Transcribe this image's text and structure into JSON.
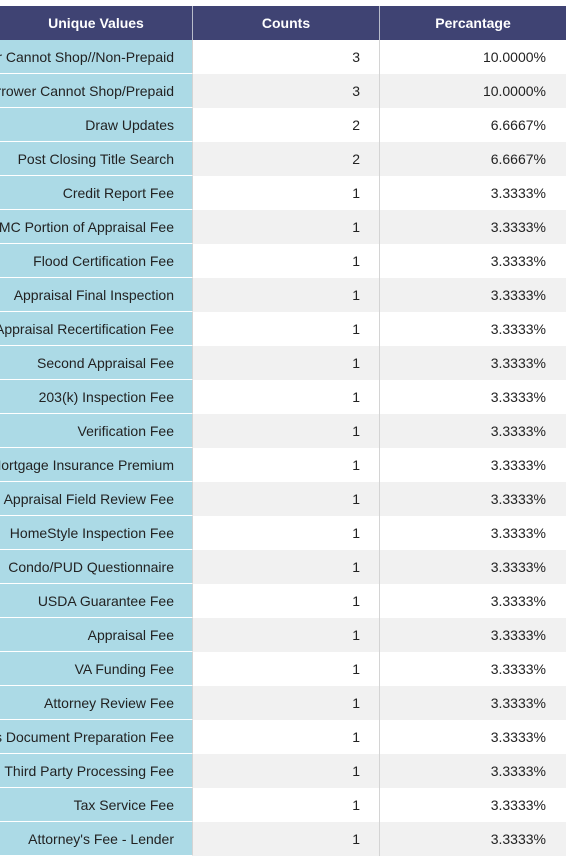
{
  "table": {
    "headers": [
      "Unique Values",
      "Counts",
      "Percantage"
    ],
    "rows": [
      {
        "value": "Borrower Cannot Shop//Non-Prepaid",
        "count": "3",
        "percent": "10.0000%"
      },
      {
        "value": "Borrower Cannot Shop/Prepaid",
        "count": "3",
        "percent": "10.0000%"
      },
      {
        "value": "Draw Updates",
        "count": "2",
        "percent": "6.6667%"
      },
      {
        "value": "Post Closing Title Search",
        "count": "2",
        "percent": "6.6667%"
      },
      {
        "value": "Credit Report Fee",
        "count": "1",
        "percent": "3.3333%"
      },
      {
        "value": "AMC Portion of Appraisal Fee",
        "count": "1",
        "percent": "3.3333%"
      },
      {
        "value": "Flood Certification Fee",
        "count": "1",
        "percent": "3.3333%"
      },
      {
        "value": "Appraisal Final Inspection",
        "count": "1",
        "percent": "3.3333%"
      },
      {
        "value": "Appraisal Recertification Fee",
        "count": "1",
        "percent": "3.3333%"
      },
      {
        "value": "Second Appraisal Fee",
        "count": "1",
        "percent": "3.3333%"
      },
      {
        "value": "203(k) Inspection Fee",
        "count": "1",
        "percent": "3.3333%"
      },
      {
        "value": "Verification Fee",
        "count": "1",
        "percent": "3.3333%"
      },
      {
        "value": "Mortgage Insurance Premium",
        "count": "1",
        "percent": "3.3333%"
      },
      {
        "value": "Appraisal Field Review Fee",
        "count": "1",
        "percent": "3.3333%"
      },
      {
        "value": "HomeStyle Inspection Fee",
        "count": "1",
        "percent": "3.3333%"
      },
      {
        "value": "Condo/PUD Questionnaire",
        "count": "1",
        "percent": "3.3333%"
      },
      {
        "value": "USDA Guarantee Fee",
        "count": "1",
        "percent": "3.3333%"
      },
      {
        "value": "Appraisal Fee",
        "count": "1",
        "percent": "3.3333%"
      },
      {
        "value": "VA Funding Fee",
        "count": "1",
        "percent": "3.3333%"
      },
      {
        "value": "Attorney Review Fee",
        "count": "1",
        "percent": "3.3333%"
      },
      {
        "value": "Lenders Document Preparation Fee",
        "count": "1",
        "percent": "3.3333%"
      },
      {
        "value": "Third Party Processing Fee",
        "count": "1",
        "percent": "3.3333%"
      },
      {
        "value": "Tax Service Fee",
        "count": "1",
        "percent": "3.3333%"
      },
      {
        "value": "Attorney's Fee - Lender",
        "count": "1",
        "percent": "3.3333%"
      }
    ]
  },
  "colors": {
    "header_bg": "#3f4373",
    "header_text": "#ffffff",
    "first_col_bg": "#acdae6",
    "row_alt_bg": "#f1f1f1"
  }
}
